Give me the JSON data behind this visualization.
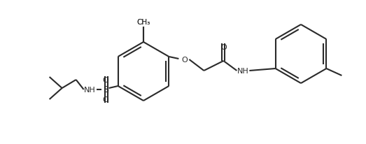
{
  "bg_color": "#ffffff",
  "line_color": "#2a2a2a",
  "line_width": 1.5,
  "figsize": [
    5.23,
    2.07
  ],
  "dpi": 100,
  "xlim": [
    0,
    523
  ],
  "ylim": [
    0,
    207
  ]
}
